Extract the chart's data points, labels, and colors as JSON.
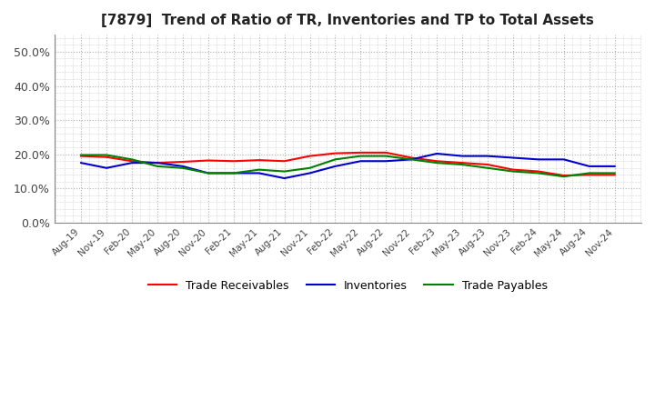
{
  "title": "[7879]  Trend of Ratio of TR, Inventories and TP to Total Assets",
  "x_labels": [
    "Aug-19",
    "Nov-19",
    "Feb-20",
    "May-20",
    "Aug-20",
    "Nov-20",
    "Feb-21",
    "May-21",
    "Aug-21",
    "Nov-21",
    "Feb-22",
    "May-22",
    "Aug-22",
    "Nov-22",
    "Feb-23",
    "May-23",
    "Aug-23",
    "Nov-23",
    "Feb-24",
    "May-24",
    "Aug-24",
    "Nov-24"
  ],
  "trade_receivables": [
    19.5,
    19.2,
    18.0,
    17.5,
    17.8,
    18.2,
    18.0,
    18.3,
    18.0,
    19.5,
    20.3,
    20.5,
    20.5,
    19.0,
    18.0,
    17.5,
    17.0,
    15.5,
    15.0,
    13.8,
    14.0,
    14.0
  ],
  "inventories": [
    17.5,
    16.0,
    17.5,
    17.5,
    16.5,
    14.5,
    14.5,
    14.5,
    13.0,
    14.5,
    16.5,
    18.0,
    18.0,
    18.5,
    20.2,
    19.5,
    19.5,
    19.0,
    18.5,
    18.5,
    16.5,
    16.5
  ],
  "trade_payables": [
    19.8,
    19.8,
    18.5,
    16.5,
    16.0,
    14.5,
    14.5,
    15.5,
    15.0,
    16.0,
    18.5,
    19.5,
    19.5,
    18.5,
    17.5,
    17.0,
    16.0,
    15.0,
    14.5,
    13.5,
    14.5,
    14.5
  ],
  "ylim": [
    0,
    55
  ],
  "yticks": [
    0,
    10,
    20,
    30,
    40,
    50
  ],
  "ytick_labels": [
    "0.0%",
    "10.0%",
    "20.0%",
    "30.0%",
    "40.0%",
    "50.0%"
  ],
  "tr_color": "#ff0000",
  "inv_color": "#0000cc",
  "tp_color": "#008000",
  "background_color": "#ffffff",
  "plot_bg_color": "#ffffff",
  "grid_color": "#b0b0b0",
  "legend_tr": "Trade Receivables",
  "legend_inv": "Inventories",
  "legend_tp": "Trade Payables"
}
